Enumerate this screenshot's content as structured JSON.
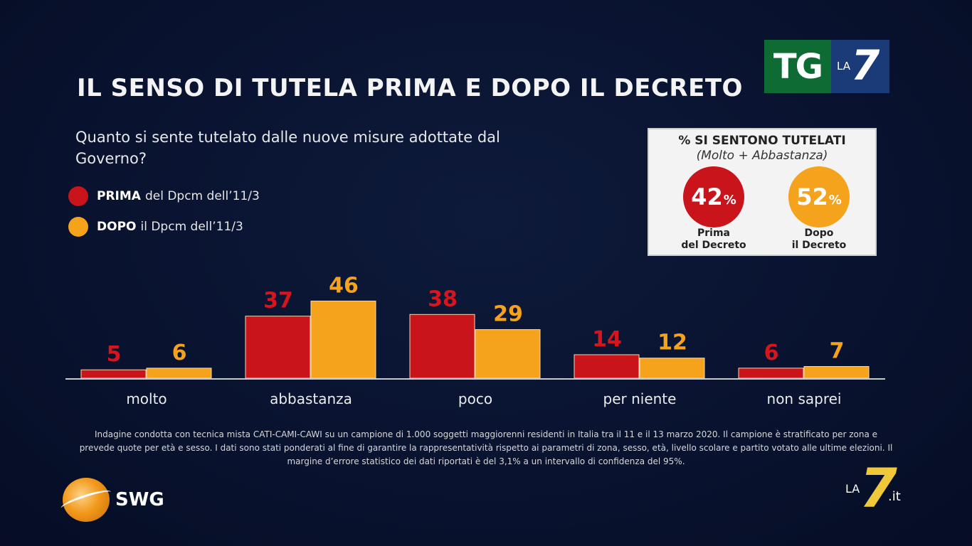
{
  "title": "IL SENSO DI TUTELA PRIMA E DOPO IL DECRETO",
  "question": "Quanto si sente tutelato dalle nuove misure adottate dal Governo?",
  "legend": [
    {
      "bold": "PRIMA",
      "text": "del Dpcm dell’11/3",
      "color": "#c9141b"
    },
    {
      "bold": "DOPO",
      "text": "il Dpcm dell’11/3",
      "color": "#f5a21c"
    }
  ],
  "summary": {
    "title": "% SI SENTONO TUTELATI",
    "subtitle": "(Molto + Abbastanza)",
    "prima": {
      "value": "42",
      "pct": "%",
      "label_line1": "Prima",
      "label_line2": "del Decreto"
    },
    "dopo": {
      "value": "52",
      "pct": "%",
      "label_line1": "Dopo",
      "label_line2": "il Decreto"
    }
  },
  "chart_data": {
    "type": "bar",
    "title": "IL SENSO DI TUTELA PRIMA E DOPO IL DECRETO",
    "categories": [
      "molto",
      "abbastanza",
      "poco",
      "per niente",
      "non saprei"
    ],
    "series": [
      {
        "name": "PRIMA del Dpcm dell’11/3",
        "values": [
          5,
          37,
          38,
          14,
          6
        ],
        "color": "#c9141b",
        "label_color": "#d8141c"
      },
      {
        "name": "DOPO il Dpcm dell’11/3",
        "values": [
          6,
          46,
          29,
          12,
          7
        ],
        "color": "#f5a21c",
        "label_color": "#f5a21c"
      }
    ],
    "ylim": [
      0,
      50
    ],
    "xlabel": "",
    "ylabel": "",
    "legend": "top-left"
  },
  "footnote": "Indagine condotta con tecnica mista CATI-CAMI-CAWI su un campione di 1.000 soggetti maggiorenni residenti in Italia tra il 11 e il 13 marzo 2020. Il campione è stratificato per zona e prevede quote per età e sesso. I dati sono stati ponderati al fine di garantire la rappresentatività rispetto ai parametri di zona, sesso, età, livello scolare e partito votato alle ultime elezioni. Il margine d’errore statistico dei dati riportati è del 3,1% a un intervallo di confidenza del 95%.",
  "logos": {
    "tg": "TG",
    "la": "LA",
    "seven": "7",
    "swg": "SWG",
    "la7it_la": "LA",
    "la7it_seven": "7",
    "la7it_it": ".it"
  }
}
